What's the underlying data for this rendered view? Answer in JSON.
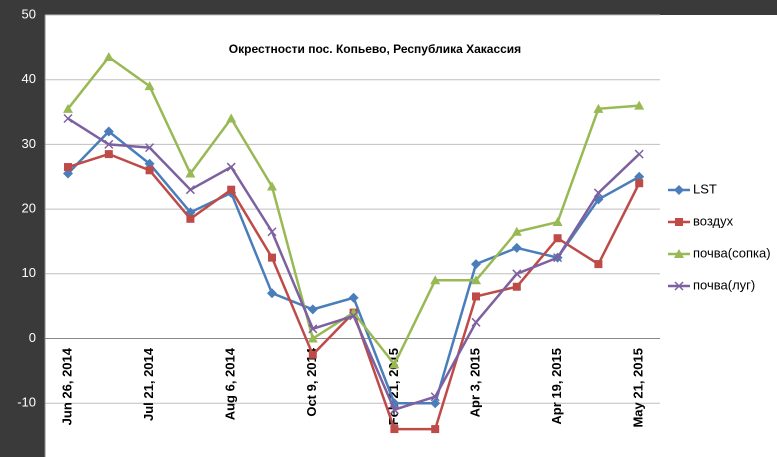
{
  "chart_data": {
    "type": "line",
    "title": "Окрестности пос. Копьево, Республика Хакассия",
    "categories": [
      "Jun 26, 2014",
      null,
      "Jul 21, 2014",
      null,
      "Aug 6, 2014",
      null,
      "Oct 9, 2014",
      null,
      "Feb 21, 2015",
      null,
      "Apr 3, 2015",
      null,
      "Apr 19, 2015",
      null,
      "May 21, 2015"
    ],
    "series": [
      {
        "name": "LST",
        "color": "#4a7ebb",
        "marker": "diamond",
        "values": [
          25.5,
          32,
          27,
          19.5,
          22.5,
          7,
          4.5,
          6.3,
          -10,
          -10,
          11.5,
          14,
          12.5,
          21.5,
          25
        ]
      },
      {
        "name": "воздух",
        "color": "#be4b48",
        "marker": "square",
        "values": [
          26.5,
          28.5,
          26,
          18.5,
          23,
          12.5,
          -2.5,
          4,
          -14,
          -14,
          6.5,
          8,
          15.5,
          11.5,
          24
        ]
      },
      {
        "name": "почва(сопка)",
        "color": "#98b954",
        "marker": "triangle",
        "values": [
          35.5,
          43.5,
          39,
          25.5,
          34,
          23.5,
          0,
          4,
          -4,
          9,
          9,
          16.5,
          18,
          35.5,
          36
        ]
      },
      {
        "name": "почва(луг)",
        "color": "#7d60a0",
        "marker": "x",
        "values": [
          34,
          30,
          29.5,
          23,
          26.5,
          16.5,
          1.5,
          3.5,
          -11,
          -9,
          2.5,
          10,
          12.5,
          22.5,
          28.5
        ]
      }
    ],
    "ylim": [
      -20,
      50
    ],
    "yticks": [
      -10,
      0,
      10,
      20,
      30,
      40,
      50
    ],
    "grid": true,
    "legend": "right"
  }
}
